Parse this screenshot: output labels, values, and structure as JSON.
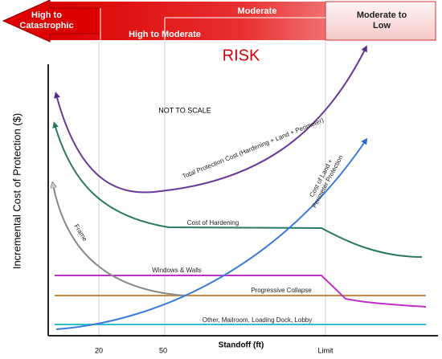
{
  "risk_banner": {
    "left": "High to\nCatastrophic",
    "middle_lower": "High to Moderate",
    "middle_upper": "Moderate",
    "right": "Moderate to\nLow",
    "title": "RISK"
  },
  "axes": {
    "y_label": "Incremental Cost of Protection ($)",
    "x_label": "Standoff (ft)",
    "x_ticks": [
      "20",
      "50",
      "Limit"
    ]
  },
  "note": "NOT TO SCALE",
  "curves": {
    "total": "Total Protection Cost (Hardening + Land + Perimeter)",
    "hardening": "Cost of Hardening",
    "frame": "Frame",
    "windows": "Windows & Walls",
    "collapse": "Progressive Collapse",
    "other": "Other, Mailroom, Loading Dock, Lobby",
    "land": "Cost of Land +\nPerimeter Protection"
  }
}
